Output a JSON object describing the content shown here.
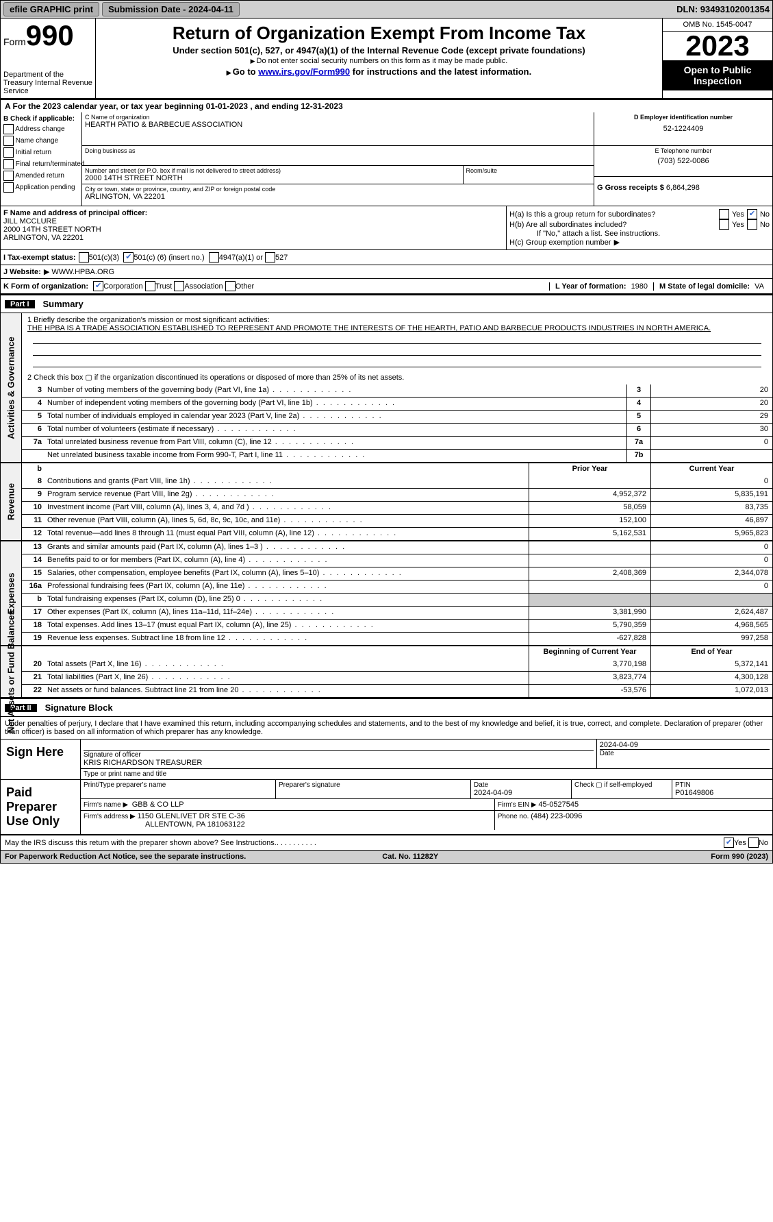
{
  "topbar": {
    "efile": "efile GRAPHIC print",
    "submission_label": "Submission Date - 2024-04-11",
    "dln_label": "DLN: 93493102001354"
  },
  "header": {
    "form_word": "Form",
    "form_number": "990",
    "dept": "Department of the Treasury\nInternal Revenue Service",
    "title": "Return of Organization Exempt From Income Tax",
    "subtitle": "Under section 501(c), 527, or 4947(a)(1) of the Internal Revenue Code (except private foundations)",
    "warn": "Do not enter social security numbers on this form as it may be made public.",
    "goto_prefix": "Go to ",
    "goto_link": "www.irs.gov/Form990",
    "goto_suffix": " for instructions and the latest information.",
    "omb": "OMB No. 1545-0047",
    "year": "2023",
    "open": "Open to Public Inspection"
  },
  "ab": {
    "line": "A For the 2023 calendar year, or tax year beginning 01-01-2023   , and ending 12-31-2023"
  },
  "b": {
    "label": "B Check if applicable:",
    "items": [
      "Address change",
      "Name change",
      "Initial return",
      "Final return/terminated",
      "Amended return",
      "Application pending"
    ]
  },
  "c": {
    "name_lbl": "C Name of organization",
    "name": "HEARTH PATIO & BARBECUE ASSOCIATION",
    "dba_lbl": "Doing business as",
    "dba": "",
    "street_lbl": "Number and street (or P.O. box if mail is not delivered to street address)",
    "street": "2000 14TH STREET NORTH",
    "room_lbl": "Room/suite",
    "room": "",
    "city_lbl": "City or town, state or province, country, and ZIP or foreign postal code",
    "city": "ARLINGTON, VA  22201"
  },
  "d": {
    "lbl": "D Employer identification number",
    "val": "52-1224409"
  },
  "e": {
    "lbl": "E Telephone number",
    "val": "(703) 522-0086"
  },
  "g": {
    "lbl": "G Gross receipts $",
    "val": "6,864,298"
  },
  "f": {
    "lbl": "F  Name and address of principal officer:",
    "name": "JILL MCCLURE",
    "street": "2000 14TH STREET NORTH",
    "city": "ARLINGTON, VA  22201"
  },
  "h": {
    "a": "H(a)  Is this a group return for subordinates?",
    "a_yes": "Yes",
    "a_no": "No",
    "b": "H(b)  Are all subordinates included?",
    "b_yes": "Yes",
    "b_no": "No",
    "b_note": "If \"No,\" attach a list. See instructions.",
    "c": "H(c)  Group exemption number",
    "c_arrow": "▶"
  },
  "i": {
    "lbl": "I   Tax-exempt status:",
    "o501c3": "501(c)(3)",
    "o501c": "501(c) (",
    "o501c_num": "6",
    "o501c_after": ") (insert no.)",
    "o4947": "4947(a)(1) or",
    "o527": "527"
  },
  "j": {
    "lbl": "J   Website:",
    "arrow": "▶",
    "val": "WWW.HPBA.ORG"
  },
  "k": {
    "lbl": "K Form of organization:",
    "corp": "Corporation",
    "trust": "Trust",
    "assoc": "Association",
    "other": "Other"
  },
  "l": {
    "lbl": "L Year of formation:",
    "val": "1980"
  },
  "m": {
    "lbl": "M State of legal domicile:",
    "val": "VA"
  },
  "part1": {
    "num": "Part I",
    "title": "Summary"
  },
  "mission": {
    "q1": "1   Briefly describe the organization's mission or most significant activities:",
    "text": "THE HPBA IS A TRADE ASSOCIATION ESTABLISHED TO REPRESENT AND PROMOTE THE INTERESTS OF THE HEARTH, PATIO AND BARBECUE PRODUCTS INDUSTRIES IN NORTH AMERICA.",
    "q2": "2   Check this box ▢ if the organization discontinued its operations or disposed of more than 25% of its net assets."
  },
  "sidebars": {
    "gov": "Activities & Governance",
    "rev": "Revenue",
    "exp": "Expenses",
    "net": "Net Assets or\nFund Balances"
  },
  "gov_lines": [
    {
      "n": "3",
      "t": "Number of voting members of the governing body (Part VI, line 1a)",
      "k": "3",
      "v": "20"
    },
    {
      "n": "4",
      "t": "Number of independent voting members of the governing body (Part VI, line 1b)",
      "k": "4",
      "v": "20"
    },
    {
      "n": "5",
      "t": "Total number of individuals employed in calendar year 2023 (Part V, line 2a)",
      "k": "5",
      "v": "29"
    },
    {
      "n": "6",
      "t": "Total number of volunteers (estimate if necessary)",
      "k": "6",
      "v": "30"
    },
    {
      "n": "7a",
      "t": "Total unrelated business revenue from Part VIII, column (C), line 12",
      "k": "7a",
      "v": "0"
    },
    {
      "n": "",
      "t": "Net unrelated business taxable income from Form 990-T, Part I, line 11",
      "k": "7b",
      "v": ""
    }
  ],
  "rev_hdr": {
    "b": "b",
    "prior": "Prior Year",
    "curr": "Current Year"
  },
  "rev_lines": [
    {
      "n": "8",
      "t": "Contributions and grants (Part VIII, line 1h)",
      "p": "",
      "c": "0"
    },
    {
      "n": "9",
      "t": "Program service revenue (Part VIII, line 2g)",
      "p": "4,952,372",
      "c": "5,835,191"
    },
    {
      "n": "10",
      "t": "Investment income (Part VIII, column (A), lines 3, 4, and 7d )",
      "p": "58,059",
      "c": "83,735"
    },
    {
      "n": "11",
      "t": "Other revenue (Part VIII, column (A), lines 5, 6d, 8c, 9c, 10c, and 11e)",
      "p": "152,100",
      "c": "46,897"
    },
    {
      "n": "12",
      "t": "Total revenue—add lines 8 through 11 (must equal Part VIII, column (A), line 12)",
      "p": "5,162,531",
      "c": "5,965,823"
    }
  ],
  "exp_lines": [
    {
      "n": "13",
      "t": "Grants and similar amounts paid (Part IX, column (A), lines 1–3 )",
      "p": "",
      "c": "0"
    },
    {
      "n": "14",
      "t": "Benefits paid to or for members (Part IX, column (A), line 4)",
      "p": "",
      "c": "0"
    },
    {
      "n": "15",
      "t": "Salaries, other compensation, employee benefits (Part IX, column (A), lines 5–10)",
      "p": "2,408,369",
      "c": "2,344,078"
    },
    {
      "n": "16a",
      "t": "Professional fundraising fees (Part IX, column (A), line 11e)",
      "p": "",
      "c": "0"
    },
    {
      "n": "b",
      "t": "Total fundraising expenses (Part IX, column (D), line 25) 0",
      "p": "shaded",
      "c": "shaded"
    },
    {
      "n": "17",
      "t": "Other expenses (Part IX, column (A), lines 11a–11d, 11f–24e)",
      "p": "3,381,990",
      "c": "2,624,487"
    },
    {
      "n": "18",
      "t": "Total expenses. Add lines 13–17 (must equal Part IX, column (A), line 25)",
      "p": "5,790,359",
      "c": "4,968,565"
    },
    {
      "n": "19",
      "t": "Revenue less expenses. Subtract line 18 from line 12",
      "p": "-627,828",
      "c": "997,258"
    }
  ],
  "net_hdr": {
    "beg": "Beginning of Current Year",
    "end": "End of Year"
  },
  "net_lines": [
    {
      "n": "20",
      "t": "Total assets (Part X, line 16)",
      "p": "3,770,198",
      "c": "5,372,141"
    },
    {
      "n": "21",
      "t": "Total liabilities (Part X, line 26)",
      "p": "3,823,774",
      "c": "4,300,128"
    },
    {
      "n": "22",
      "t": "Net assets or fund balances. Subtract line 21 from line 20",
      "p": "-53,576",
      "c": "1,072,013"
    }
  ],
  "part2": {
    "num": "Part II",
    "title": "Signature Block"
  },
  "sig": {
    "intro": "Under penalties of perjury, I declare that I have examined this return, including accompanying schedules and statements, and to the best of my knowledge and belief, it is true, correct, and complete. Declaration of preparer (other than officer) is based on all information of which preparer has any knowledge.",
    "sign_here": "Sign Here",
    "sig_officer_lbl": "Signature of officer",
    "officer_name": "KRIS RICHARDSON  TREASURER",
    "type_lbl": "Type or print name and title",
    "date_top": "2024-04-09",
    "date_lbl": "Date",
    "paid": "Paid Preparer Use Only",
    "prep_name_lbl": "Print/Type preparer's name",
    "prep_name": "",
    "prep_sig_lbl": "Preparer's signature",
    "prep_date_lbl": "Date",
    "prep_date": "2024-04-09",
    "check_lbl": "Check ▢ if self-employed",
    "ptin_lbl": "PTIN",
    "ptin": "P01649806",
    "firm_name_lbl": "Firm's name  ▶",
    "firm_name": "GBB & CO LLP",
    "firm_ein_lbl": "Firm's EIN ▶",
    "firm_ein": "45-0527545",
    "firm_addr_lbl": "Firm's address ▶",
    "firm_addr1": "1150 GLENLIVET DR STE C-36",
    "firm_addr2": "ALLENTOWN, PA  181063122",
    "phone_lbl": "Phone no.",
    "phone": "(484) 223-0096"
  },
  "footer": {
    "discuss": "May the IRS discuss this return with the preparer shown above? See Instructions.",
    "yes": "Yes",
    "no": "No",
    "pra": "For Paperwork Reduction Act Notice, see the separate instructions.",
    "cat": "Cat. No. 11282Y",
    "form": "Form 990 (2023)"
  }
}
